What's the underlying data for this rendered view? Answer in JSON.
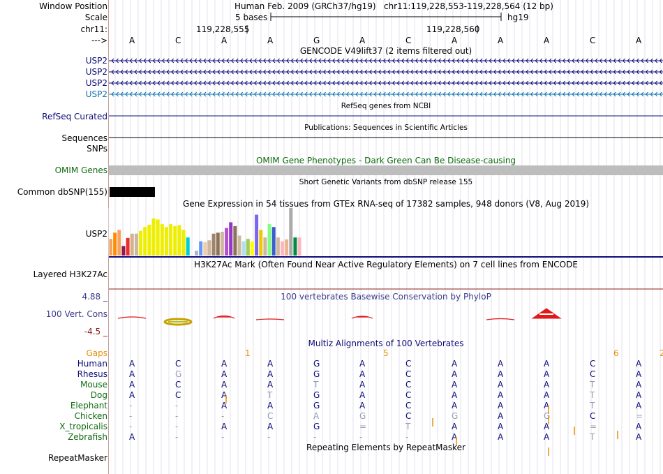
{
  "labels": {
    "window_position": "Window Position",
    "scale": "Scale",
    "chrom": "chr11:",
    "strand": "--->",
    "gene1": "USP2",
    "gene2": "USP2",
    "gene3": "USP2",
    "gene4": "USP2",
    "refseq": "RefSeq Curated",
    "sequences": "Sequences",
    "snps": "SNPs",
    "omim": "OMIM Genes",
    "common_dbsnp": "Common dbSNP(155)",
    "gtex_gene": "USP2",
    "layered": "Layered H3K27Ac",
    "phylop_max": "4.88 _",
    "phylop_name": "100 Vert. Cons",
    "phylop_min": "-4.5 _",
    "repeatmasker": "RepeatMasker"
  },
  "header": {
    "assembly": "Human Feb. 2009 (GRCh37/hg19)",
    "position": "chr11:119,228,553-119,228,564 (12 bp)",
    "scale_text": "5 bases",
    "db": "hg19",
    "coord1": "119,228,555",
    "coord2": "119,228,560"
  },
  "bases": [
    "A",
    "C",
    "A",
    "A",
    "G",
    "A",
    "C",
    "A",
    "A",
    "A",
    "C",
    "A"
  ],
  "titles": {
    "gencode": "GENCODE V49lift37 (2 items filtered out)",
    "refseq": "RefSeq genes from NCBI",
    "publications": "Publications: Sequences in Scientific Articles",
    "omim": "OMIM Gene Phenotypes - Dark Green Can Be Disease-causing",
    "dbsnp": "Short Genetic Variants from dbSNP release 155",
    "gtex": "Gene Expression in 54 tissues from GTEx RNA-seq of 17382 samples, 948 donors (V8, Aug 2019)",
    "h3k27ac": "H3K27Ac Mark (Often Found Near Active Regulatory Elements) on 7 cell lines from ENCODE",
    "phylop": "100 vertebrates Basewise Conservation by PhyloP",
    "multiz": "Multiz Alignments of 100 Vertebrates",
    "repeatmasker": "Repeating Elements by RepeatMasker"
  },
  "gaps": {
    "label": "Gaps",
    "counts": [
      "",
      "",
      "1",
      "",
      "",
      "5",
      "",
      "",
      "",
      "",
      "6",
      "2"
    ]
  },
  "species": [
    {
      "name": "Human",
      "bases": [
        "A",
        "C",
        "A",
        "A",
        "G",
        "A",
        "C",
        "A",
        "A",
        "A",
        "C",
        "A"
      ]
    },
    {
      "name": "Rhesus",
      "bases": [
        "A",
        "G",
        "A",
        "A",
        "G",
        "A",
        "C",
        "A",
        "A",
        "A",
        "C",
        "A"
      ]
    },
    {
      "name": "Mouse",
      "bases": [
        "A",
        "C",
        "A",
        "A",
        "T",
        "A",
        "C",
        "A",
        "A",
        "A",
        "T",
        "A"
      ]
    },
    {
      "name": "Dog",
      "bases": [
        "A",
        "C",
        "A",
        "T",
        "G",
        "A",
        "C",
        "A",
        "A",
        "A",
        "T",
        "A"
      ]
    },
    {
      "name": "Elephant",
      "bases": [
        "-",
        "-",
        "A",
        "A",
        "G",
        "A",
        "C",
        "A",
        "A",
        "A",
        "T",
        "A"
      ]
    },
    {
      "name": "Chicken",
      "bases": [
        "-",
        "-",
        "-",
        "C",
        "A",
        "G",
        "C",
        "G",
        "A",
        "G",
        "C",
        "="
      ]
    },
    {
      "name": "X_tropicalis",
      "bases": [
        "-",
        "-",
        "A",
        "A",
        "G",
        "=",
        "T",
        "A",
        "A",
        "A",
        "=",
        "A"
      ]
    },
    {
      "name": "Zebrafish",
      "bases": [
        "A",
        "-",
        "-",
        "-",
        "-",
        "-",
        "-",
        "A",
        "A",
        "A",
        "T",
        "A"
      ]
    }
  ],
  "gtex_bars": [
    {
      "color": "#F4A460",
      "value": 0.35
    },
    {
      "color": "#FF8C00",
      "value": 0.48
    },
    {
      "color": "#F4A460",
      "value": 0.54
    },
    {
      "color": "#8B1A55",
      "value": 0.2
    },
    {
      "color": "#EE2C2C",
      "value": 0.37
    },
    {
      "color": "#D2B48C",
      "value": 0.46
    },
    {
      "color": "#CDB79E",
      "value": 0.46
    },
    {
      "color": "#EEEE00",
      "value": 0.52
    },
    {
      "color": "#EEEE00",
      "value": 0.6
    },
    {
      "color": "#EEEE00",
      "value": 0.65
    },
    {
      "color": "#EEEE00",
      "value": 0.78
    },
    {
      "color": "#EEEE00",
      "value": 0.76
    },
    {
      "color": "#EEEE00",
      "value": 0.66
    },
    {
      "color": "#EEEE00",
      "value": 0.6
    },
    {
      "color": "#EEEE00",
      "value": 0.66
    },
    {
      "color": "#EEEE00",
      "value": 0.62
    },
    {
      "color": "#EEEE00",
      "value": 0.64
    },
    {
      "color": "#EEEE00",
      "value": 0.54
    },
    {
      "color": "#00CDCD",
      "value": 0.38
    },
    {
      "color": "#FFFFFF",
      "value": 0.0
    },
    {
      "color": "#B4B4C8",
      "value": 0.1
    },
    {
      "color": "#6699FF",
      "value": 0.3
    },
    {
      "color": "#EECFA1",
      "value": 0.28
    },
    {
      "color": "#CDB79E",
      "value": 0.32
    },
    {
      "color": "#A0826D",
      "value": 0.46
    },
    {
      "color": "#8B7355",
      "value": 0.48
    },
    {
      "color": "#CDB79E",
      "value": 0.5
    },
    {
      "color": "#B452CD",
      "value": 0.58
    },
    {
      "color": "#9A32CD",
      "value": 0.7
    },
    {
      "color": "#8B7355",
      "value": 0.62
    },
    {
      "color": "#CDB79E",
      "value": 0.42
    },
    {
      "color": "#B2DFEE",
      "value": 0.3
    },
    {
      "color": "#A2CD5A",
      "value": 0.35
    },
    {
      "color": "#FFFF00",
      "value": 0.3
    },
    {
      "color": "#7A67EE",
      "value": 0.86
    },
    {
      "color": "#EEC900",
      "value": 0.54
    },
    {
      "color": "#CDB79E",
      "value": 0.38
    },
    {
      "color": "#7FFF7F",
      "value": 0.66
    },
    {
      "color": "#3A5FCD",
      "value": 0.6
    },
    {
      "color": "#CDB79E",
      "value": 0.38
    },
    {
      "color": "#FFB6C1",
      "value": 0.3
    },
    {
      "color": "#EEB48C",
      "value": 0.34
    },
    {
      "color": "#AAAAAA",
      "value": 1.0
    },
    {
      "color": "#008B45",
      "value": 0.38
    },
    {
      "color": "#FFB6C1",
      "value": 0.38
    }
  ],
  "colors": {
    "gencode_blue": "#0c0c78",
    "gencode_teal": "#0a72ac",
    "omim_bar": "#bdbdbd",
    "omim_label": "#0e6b0e",
    "phylop_label": "#3c3c8c",
    "phylop_min": "#8c1c1c",
    "gaps": "#e8900a",
    "species_blue": "#0c0c78",
    "species_green": "#0e6b0e",
    "base_dim": "#9a9ab4"
  }
}
